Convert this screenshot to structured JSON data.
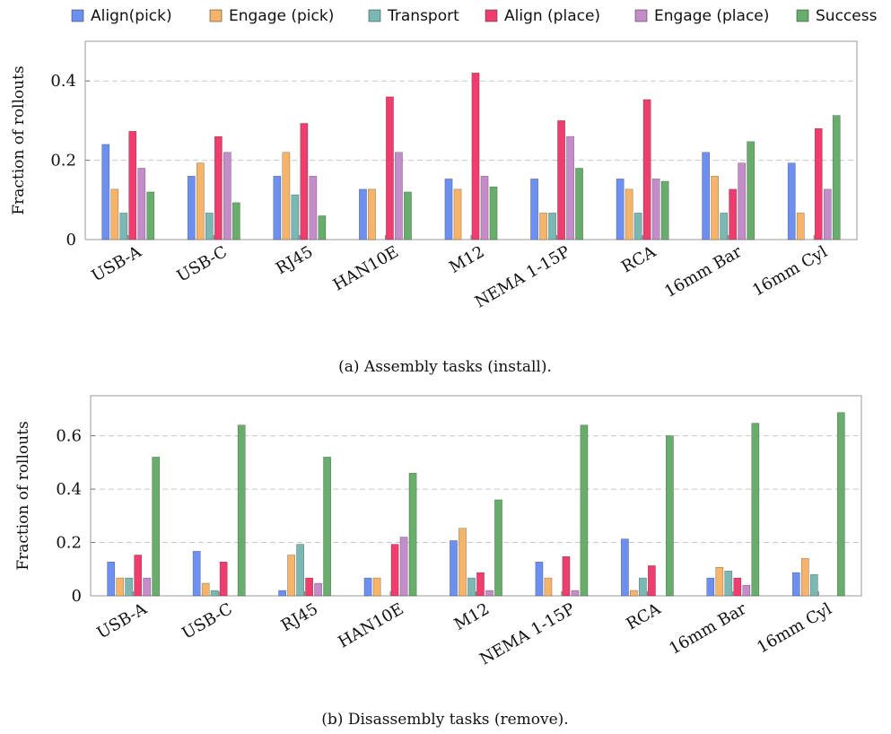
{
  "legend": [
    {
      "name": "Align(pick)",
      "color": "#6d8ff0"
    },
    {
      "name": "Engage (pick)",
      "color": "#f6b46a"
    },
    {
      "name": "Transport",
      "color": "#7ab8b4"
    },
    {
      "name": "Align (place)",
      "color": "#ee3d6e"
    },
    {
      "name": "Engage (place)",
      "color": "#c48cc8"
    },
    {
      "name": "Success",
      "color": "#68ad6c"
    }
  ],
  "chart_data": [
    {
      "type": "bar",
      "caption": "(a) Assembly tasks (install).",
      "ylabel": "Fraction of rollouts",
      "ylim": [
        0,
        0.5
      ],
      "yticks": [
        0,
        0.2,
        0.4
      ],
      "ytick_labels": [
        "0",
        "0.2",
        "0.4"
      ],
      "grid": "horizontal-dashed",
      "categories": [
        "USB-A",
        "USB-C",
        "RJ45",
        "HAN10E",
        "M12",
        "NEMA 1-15P",
        "RCA",
        "16mm Bar",
        "16mm Cyl"
      ],
      "series": [
        {
          "name": "Align(pick)",
          "values": [
            0.24,
            0.16,
            0.16,
            0.127,
            0.153,
            0.153,
            0.153,
            0.22,
            0.193
          ]
        },
        {
          "name": "Engage (pick)",
          "values": [
            0.127,
            0.193,
            0.22,
            0.127,
            0.127,
            0.067,
            0.127,
            0.16,
            0.067
          ]
        },
        {
          "name": "Transport",
          "values": [
            0.067,
            0.067,
            0.113,
            0,
            0,
            0.067,
            0.067,
            0.067,
            0
          ]
        },
        {
          "name": "Align (place)",
          "values": [
            0.273,
            0.26,
            0.293,
            0.36,
            0.42,
            0.3,
            0.353,
            0.127,
            0.28
          ]
        },
        {
          "name": "Engage (place)",
          "values": [
            0.18,
            0.22,
            0.16,
            0.22,
            0.16,
            0.26,
            0.153,
            0.193,
            0.127
          ]
        },
        {
          "name": "Success",
          "values": [
            0.12,
            0.093,
            0.06,
            0.12,
            0.133,
            0.18,
            0.147,
            0.247,
            0.313
          ]
        }
      ]
    },
    {
      "type": "bar",
      "caption": "(b) Disassembly tasks (remove).",
      "ylabel": "Fraction of rollouts",
      "ylim": [
        0,
        0.75
      ],
      "yticks": [
        0,
        0.2,
        0.4,
        0.6
      ],
      "ytick_labels": [
        "0",
        "0.2",
        "0.4",
        "0.6"
      ],
      "grid": "horizontal-dashed",
      "categories": [
        "USB-A",
        "USB-C",
        "RJ45",
        "HAN10E",
        "M12",
        "NEMA 1-15P",
        "RCA",
        "16mm Bar",
        "16mm Cyl"
      ],
      "series": [
        {
          "name": "Align(pick)",
          "values": [
            0.127,
            0.167,
            0.02,
            0.067,
            0.207,
            0.127,
            0.213,
            0.067,
            0.087
          ]
        },
        {
          "name": "Engage (pick)",
          "values": [
            0.067,
            0.047,
            0.153,
            0.067,
            0.253,
            0.067,
            0.02,
            0.107,
            0.14
          ]
        },
        {
          "name": "Transport",
          "values": [
            0.067,
            0.02,
            0.193,
            0,
            0.067,
            0,
            0.067,
            0.093,
            0.08
          ]
        },
        {
          "name": "Align (place)",
          "values": [
            0.153,
            0.127,
            0.067,
            0.193,
            0.087,
            0.147,
            0.113,
            0.067,
            0
          ]
        },
        {
          "name": "Engage (place)",
          "values": [
            0.067,
            0,
            0.047,
            0.22,
            0.02,
            0.02,
            0,
            0.04,
            0
          ]
        },
        {
          "name": "Success",
          "values": [
            0.52,
            0.64,
            0.52,
            0.46,
            0.36,
            0.64,
            0.6,
            0.647,
            0.687
          ]
        }
      ]
    }
  ]
}
